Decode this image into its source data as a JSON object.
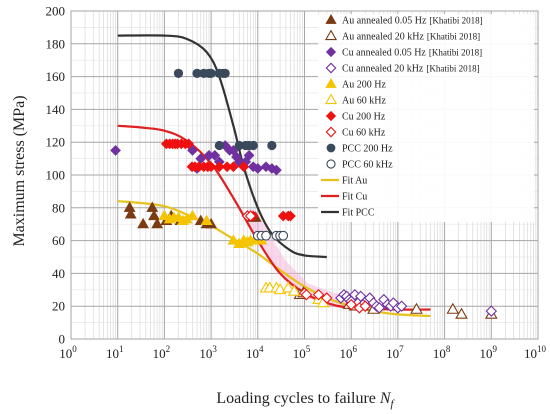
{
  "chart_data": {
    "type": "scatter",
    "xlabel": "Loading cycles to failure ",
    "xlabel_symbol": "N",
    "xlabel_sub": "f",
    "ylabel": "Maximum stress (MPa)",
    "xscale": "log",
    "xlim": [
      1,
      10000000000
    ],
    "ylim": [
      0,
      200
    ],
    "grid": true,
    "legend_position": "right",
    "x_tick_labels": [
      {
        "base": "10",
        "exp": "0"
      },
      {
        "base": "10",
        "exp": "1"
      },
      {
        "base": "10",
        "exp": "2"
      },
      {
        "base": "10",
        "exp": "3"
      },
      {
        "base": "10",
        "exp": "4"
      },
      {
        "base": "10",
        "exp": "5"
      },
      {
        "base": "10",
        "exp": "6"
      },
      {
        "base": "10",
        "exp": "7"
      },
      {
        "base": "10",
        "exp": "8"
      },
      {
        "base": "10",
        "exp": "9"
      },
      {
        "base": "10",
        "exp": "10"
      }
    ],
    "y_tick_labels": [
      "0",
      "20",
      "40",
      "60",
      "80",
      "100",
      "120",
      "140",
      "160",
      "180",
      "200"
    ],
    "series": [
      {
        "name": "Au annealed 0.05 Hz",
        "ref": "[Khatibi 2018]",
        "marker": "triangle",
        "filled": true,
        "color": "#7b3b12",
        "points": [
          [
            18,
            80
          ],
          [
            19,
            76
          ],
          [
            35,
            70
          ],
          [
            55,
            80
          ],
          [
            60,
            75
          ],
          [
            70,
            70
          ],
          [
            110,
            72
          ],
          [
            140,
            75
          ],
          [
            220,
            72
          ],
          [
            600,
            72
          ],
          [
            800,
            70
          ],
          [
            1000,
            70
          ],
          [
            8000,
            74
          ],
          [
            9000,
            74
          ]
        ]
      },
      {
        "name": "Au annealed 20 kHz",
        "ref": "[Khatibi 2018]",
        "marker": "triangle",
        "filled": false,
        "color": "#7b3b12",
        "points": [
          [
            80000,
            27
          ],
          [
            95000,
            28
          ],
          [
            900000,
            21
          ],
          [
            1200000,
            20
          ],
          [
            2500000,
            20
          ],
          [
            3000000,
            18
          ],
          [
            25000000,
            18
          ],
          [
            150000000,
            18
          ],
          [
            230000000,
            15
          ],
          [
            1000000000,
            15
          ]
        ]
      },
      {
        "name": "Cu annealed 0.05 Hz",
        "ref": "[Khatibi 2018]",
        "marker": "diamond",
        "filled": true,
        "color": "#7030a0",
        "points": [
          [
            9,
            115
          ],
          [
            400,
            115
          ],
          [
            500,
            104
          ],
          [
            600,
            110
          ],
          [
            900,
            112
          ],
          [
            1200,
            112
          ],
          [
            1500,
            108
          ],
          [
            2000,
            118
          ],
          [
            2500,
            115
          ],
          [
            3000,
            115
          ],
          [
            3500,
            111
          ],
          [
            4000,
            108
          ],
          [
            5500,
            108
          ],
          [
            6500,
            112
          ],
          [
            8000,
            105
          ],
          [
            10000,
            104
          ],
          [
            15000,
            105
          ],
          [
            20000,
            104
          ],
          [
            25000,
            103
          ]
        ]
      },
      {
        "name": "Cu annealed 20 kHz",
        "ref": "[Khatibi 2018]",
        "marker": "diamond",
        "filled": false,
        "color": "#7030a0",
        "points": [
          [
            600000,
            25
          ],
          [
            700000,
            27
          ],
          [
            800000,
            26
          ],
          [
            900000,
            24
          ],
          [
            1000000,
            23
          ],
          [
            1200000,
            27
          ],
          [
            1400000,
            22
          ],
          [
            1600000,
            26
          ],
          [
            1800000,
            21
          ],
          [
            2000000,
            20
          ],
          [
            2500000,
            25
          ],
          [
            3000000,
            22
          ],
          [
            3500000,
            20
          ],
          [
            4000000,
            19
          ],
          [
            5000000,
            24
          ],
          [
            6000000,
            21
          ],
          [
            7000000,
            20
          ],
          [
            8000000,
            22
          ],
          [
            10000000,
            19
          ],
          [
            12000000,
            20
          ],
          [
            1000000000,
            17
          ]
        ]
      },
      {
        "name": "Au 200 Hz",
        "ref": "",
        "marker": "triangle",
        "filled": true,
        "color": "#f5c400",
        "points": [
          [
            100,
            75
          ],
          [
            130,
            73
          ],
          [
            160,
            74
          ],
          [
            200,
            74
          ],
          [
            250,
            72
          ],
          [
            300,
            73
          ],
          [
            400,
            75
          ],
          [
            800,
            72
          ],
          [
            3000,
            60
          ],
          [
            4000,
            58
          ],
          [
            5000,
            60
          ],
          [
            6000,
            59
          ],
          [
            7000,
            60
          ],
          [
            9000,
            61
          ],
          [
            12000,
            60
          ]
        ]
      },
      {
        "name": "Au 60 kHz",
        "ref": "",
        "marker": "triangle",
        "filled": false,
        "color": "#f5c400",
        "points": [
          [
            15000,
            31
          ],
          [
            18000,
            31
          ],
          [
            25000,
            31
          ],
          [
            30000,
            30
          ],
          [
            45000,
            31
          ],
          [
            60000,
            29
          ],
          [
            200000,
            24
          ],
          [
            250000,
            22
          ]
        ]
      },
      {
        "name": "Cu 200 Hz",
        "ref": "",
        "marker": "diamond",
        "filled": true,
        "color": "#ee1111",
        "points": [
          [
            110,
            119
          ],
          [
            130,
            119
          ],
          [
            150,
            119
          ],
          [
            170,
            119
          ],
          [
            190,
            119
          ],
          [
            230,
            119
          ],
          [
            280,
            119
          ],
          [
            330,
            119
          ],
          [
            390,
            105
          ],
          [
            450,
            105
          ],
          [
            550,
            105
          ],
          [
            700,
            105
          ],
          [
            850,
            105
          ],
          [
            1000,
            105
          ],
          [
            1500,
            105
          ],
          [
            2200,
            105
          ],
          [
            3000,
            105
          ],
          [
            5000,
            105
          ],
          [
            8000,
            75
          ],
          [
            35000,
            75
          ],
          [
            45000,
            75
          ],
          [
            50000,
            75
          ]
        ]
      },
      {
        "name": "Cu 60 kHz",
        "ref": "",
        "marker": "diamond",
        "filled": false,
        "color": "#ee1111",
        "points": [
          [
            6000,
            75
          ],
          [
            7000,
            75
          ],
          [
            100000,
            28
          ],
          [
            110000,
            27
          ],
          [
            200000,
            27
          ],
          [
            300000,
            25
          ],
          [
            1000000,
            21
          ],
          [
            1500000,
            19
          ],
          [
            2000000,
            20
          ]
        ]
      },
      {
        "name": "PCC 200 Hz",
        "ref": "",
        "marker": "circle",
        "filled": true,
        "color": "#3a4a5c",
        "points": [
          [
            200,
            162
          ],
          [
            500,
            162
          ],
          [
            700,
            162
          ],
          [
            900,
            162
          ],
          [
            1000,
            162
          ],
          [
            1500,
            162
          ],
          [
            1800,
            162
          ],
          [
            2000,
            162
          ],
          [
            1500,
            118
          ],
          [
            4000,
            118
          ],
          [
            5500,
            118
          ],
          [
            6500,
            118
          ],
          [
            8000,
            118
          ],
          [
            20000,
            118
          ]
        ]
      },
      {
        "name": "PCC 60 kHz",
        "ref": "",
        "marker": "circle",
        "filled": false,
        "color": "#3a4a5c",
        "points": [
          [
            10000,
            63
          ],
          [
            12000,
            63
          ],
          [
            15000,
            63
          ],
          [
            25000,
            63
          ],
          [
            30000,
            63
          ],
          [
            35000,
            63
          ]
        ]
      },
      {
        "name": "Fit Au",
        "ref": "",
        "marker": "line",
        "color": "#e6c21a",
        "points": [
          [
            10,
            84
          ],
          [
            30,
            83
          ],
          [
            100,
            81
          ],
          [
            300,
            76
          ],
          [
            1000,
            69
          ],
          [
            3000,
            61
          ],
          [
            10000,
            52
          ],
          [
            30000,
            42
          ],
          [
            100000,
            32
          ],
          [
            300000,
            25
          ],
          [
            1000000,
            20
          ],
          [
            3000000,
            17
          ],
          [
            10000000,
            15
          ],
          [
            50000000,
            14
          ]
        ]
      },
      {
        "name": "Fit Cu",
        "ref": "",
        "marker": "line",
        "color": "#e02020",
        "points": [
          [
            10,
            130
          ],
          [
            30,
            129
          ],
          [
            100,
            127
          ],
          [
            300,
            121
          ],
          [
            1000,
            107
          ],
          [
            3000,
            86
          ],
          [
            10000,
            60
          ],
          [
            30000,
            40
          ],
          [
            100000,
            28
          ],
          [
            300000,
            22
          ],
          [
            1000000,
            19
          ],
          [
            10000000,
            18
          ],
          [
            50000000,
            18
          ]
        ]
      },
      {
        "name": "Fit PCC",
        "ref": "",
        "marker": "line",
        "color": "#333333",
        "points": [
          [
            10,
            185
          ],
          [
            100,
            185
          ],
          [
            300,
            183
          ],
          [
            800,
            175
          ],
          [
            1500,
            160
          ],
          [
            3000,
            130
          ],
          [
            5000,
            105
          ],
          [
            10000,
            80
          ],
          [
            20000,
            64
          ],
          [
            50000,
            54
          ],
          [
            100000,
            51
          ],
          [
            300000,
            50
          ]
        ]
      }
    ]
  }
}
